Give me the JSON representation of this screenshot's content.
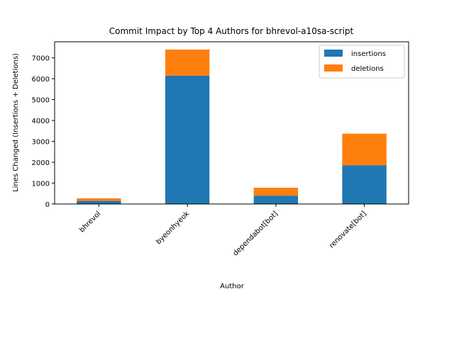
{
  "chart_data": {
    "type": "bar",
    "stacked": true,
    "title": "Commit Impact by Top 4 Authors for bhrevol-a10sa-script",
    "xlabel": "Author",
    "ylabel": "Lines Changed (Insertions + Deletions)",
    "categories": [
      "bhrevol",
      "byeonhyeok",
      "dependabot[bot]",
      "renovate[bot]"
    ],
    "series": [
      {
        "name": "insertions",
        "color": "#1f77b4",
        "values": [
          150,
          6150,
          400,
          1850
        ]
      },
      {
        "name": "deletions",
        "color": "#ff7f0e",
        "values": [
          120,
          1250,
          380,
          1520
        ]
      }
    ],
    "ylim": [
      0,
      7770
    ],
    "yticks": [
      0,
      1000,
      2000,
      3000,
      4000,
      5000,
      6000,
      7000
    ],
    "legend_position": "top-right",
    "grid": false
  }
}
